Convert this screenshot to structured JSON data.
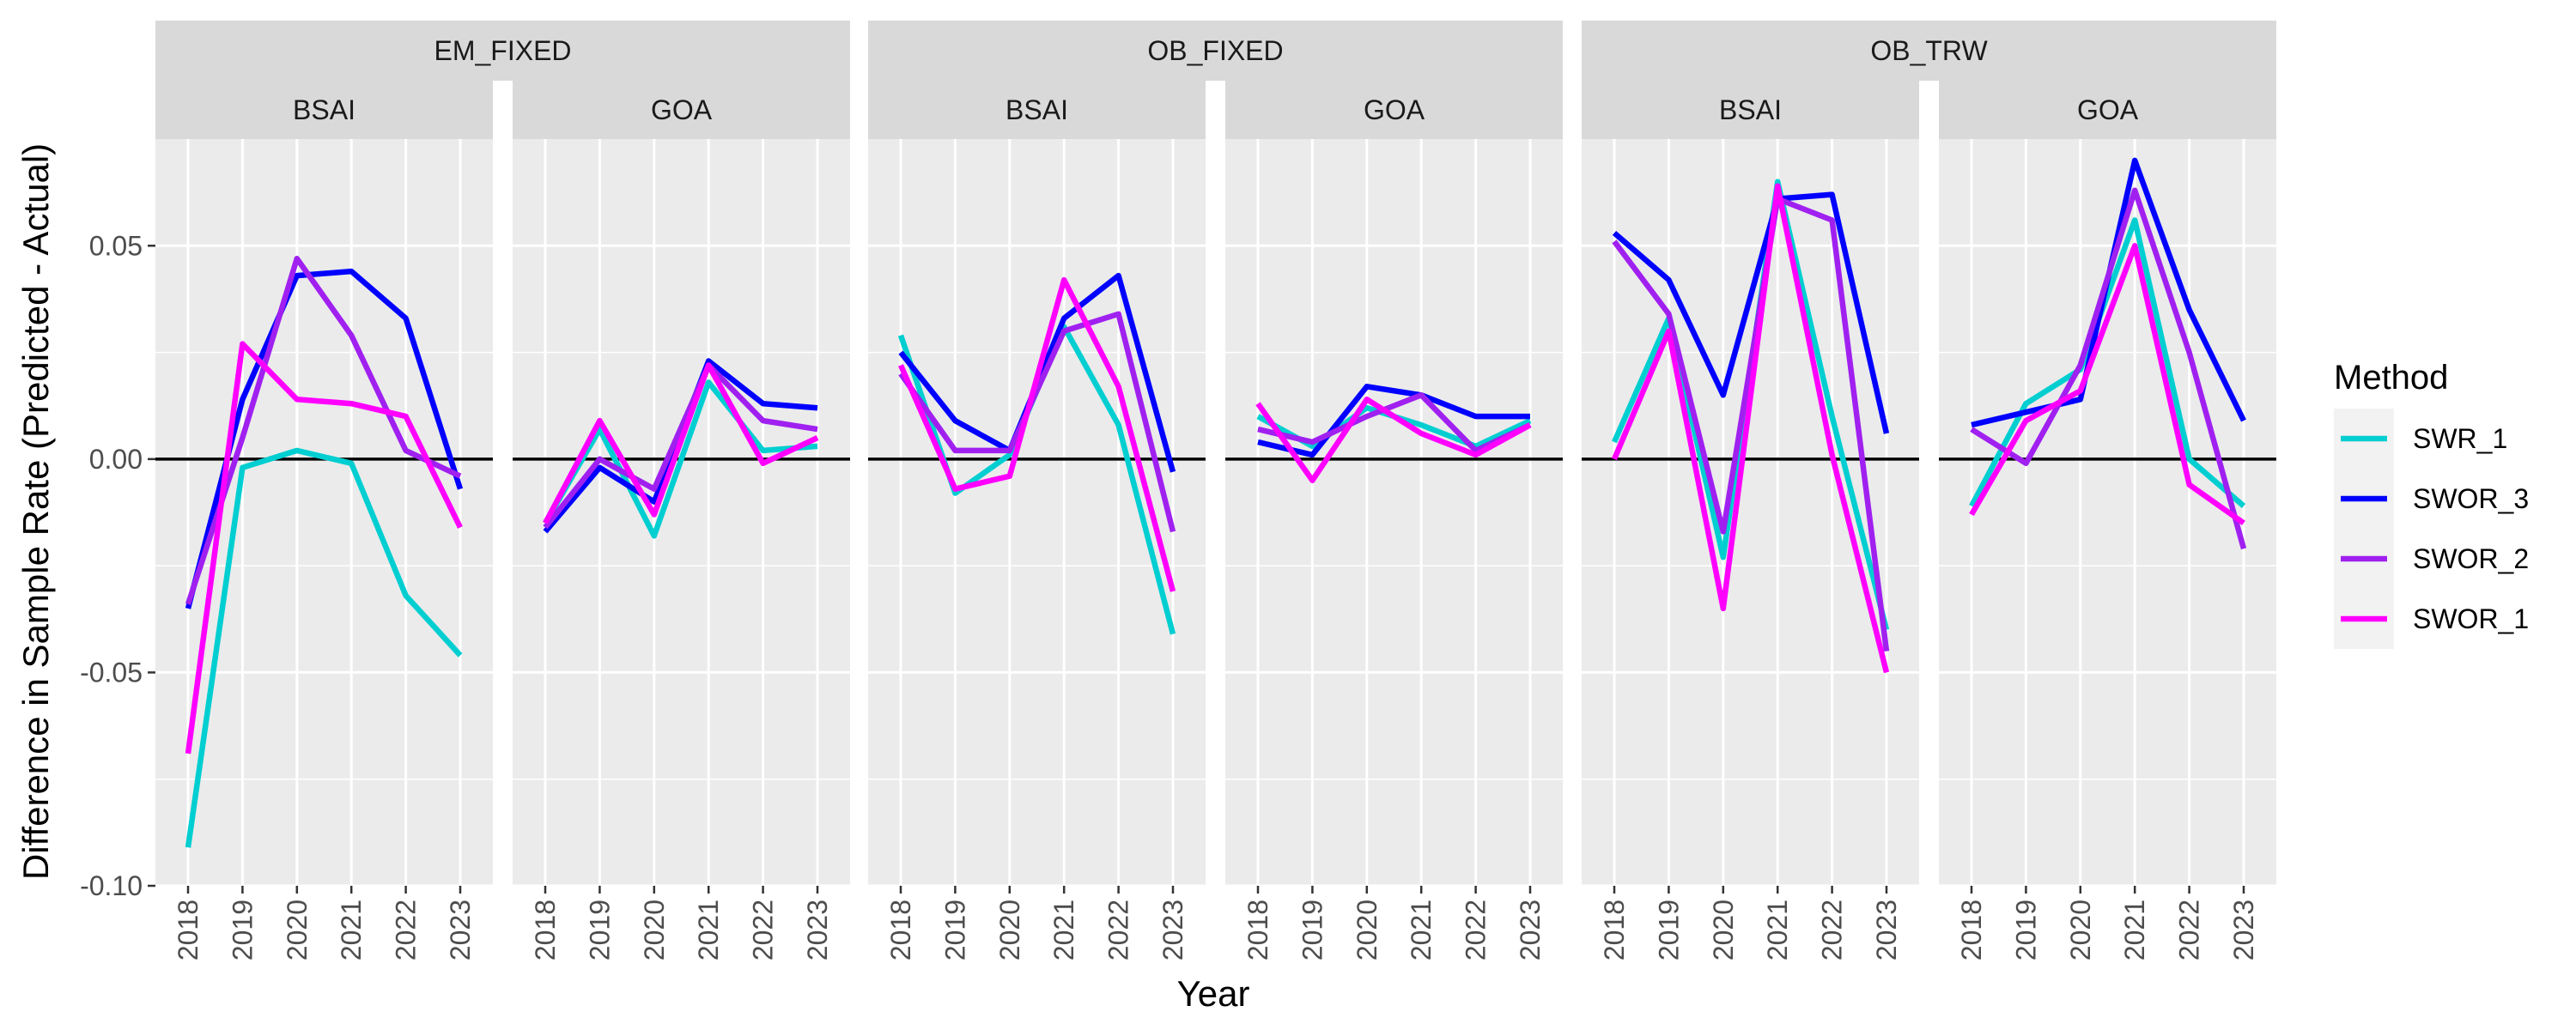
{
  "chart_data": {
    "type": "line",
    "xlabel": "Year",
    "ylabel": "Difference in Sample Rate (Predicted - Actual)",
    "x": [
      "2018",
      "2019",
      "2020",
      "2021",
      "2022",
      "2023"
    ],
    "ylim": [
      -0.1,
      0.075
    ],
    "y_ticks": [
      -0.1,
      -0.05,
      0.0,
      0.05
    ],
    "y_tick_labels": [
      "-0.10",
      "-0.05",
      "0.00",
      "0.05"
    ],
    "reference_line": 0,
    "grid": true,
    "legend": {
      "title": "Method",
      "placement": "right"
    },
    "colors": {
      "SWR_1": "#00CED1",
      "SWOR_3": "#0000FF",
      "SWOR_2": "#A020F0",
      "SWOR_1": "#FF00FF"
    },
    "groups": [
      {
        "label": "EM_FIXED",
        "panels": [
          0,
          1
        ]
      },
      {
        "label": "OB_FIXED",
        "panels": [
          2,
          3
        ]
      },
      {
        "label": "OB_TRW",
        "panels": [
          4,
          5
        ]
      }
    ],
    "panels": [
      {
        "group": "EM_FIXED",
        "label": "BSAI",
        "series": [
          {
            "name": "SWR_1",
            "values": [
              -0.091,
              -0.002,
              0.002,
              -0.001,
              -0.032,
              -0.046
            ]
          },
          {
            "name": "SWOR_3",
            "values": [
              -0.035,
              0.014,
              0.043,
              0.044,
              0.033,
              -0.007
            ]
          },
          {
            "name": "SWOR_2",
            "values": [
              -0.034,
              0.005,
              0.047,
              0.029,
              0.002,
              -0.004
            ]
          },
          {
            "name": "SWOR_1",
            "values": [
              -0.069,
              0.027,
              0.014,
              0.013,
              0.01,
              -0.016
            ]
          }
        ]
      },
      {
        "group": "EM_FIXED",
        "label": "GOA",
        "series": [
          {
            "name": "SWR_1",
            "values": [
              -0.015,
              0.007,
              -0.018,
              0.018,
              0.002,
              0.003
            ]
          },
          {
            "name": "SWOR_3",
            "values": [
              -0.017,
              -0.002,
              -0.01,
              0.023,
              0.013,
              0.012
            ]
          },
          {
            "name": "SWOR_2",
            "values": [
              -0.016,
              0.0,
              -0.007,
              0.022,
              0.009,
              0.007
            ]
          },
          {
            "name": "SWOR_1",
            "values": [
              -0.015,
              0.009,
              -0.013,
              0.022,
              -0.001,
              0.005
            ]
          }
        ]
      },
      {
        "group": "OB_FIXED",
        "label": "BSAI",
        "series": [
          {
            "name": "SWR_1",
            "values": [
              0.029,
              -0.008,
              0.001,
              0.031,
              0.008,
              -0.041
            ]
          },
          {
            "name": "SWOR_3",
            "values": [
              0.025,
              0.009,
              0.002,
              0.033,
              0.043,
              -0.003
            ]
          },
          {
            "name": "SWOR_2",
            "values": [
              0.02,
              0.002,
              0.002,
              0.03,
              0.034,
              -0.017
            ]
          },
          {
            "name": "SWOR_1",
            "values": [
              0.022,
              -0.007,
              -0.004,
              0.042,
              0.017,
              -0.031
            ]
          }
        ]
      },
      {
        "group": "OB_FIXED",
        "label": "GOA",
        "series": [
          {
            "name": "SWR_1",
            "values": [
              0.01,
              0.003,
              0.012,
              0.008,
              0.003,
              0.009
            ]
          },
          {
            "name": "SWOR_3",
            "values": [
              0.004,
              0.001,
              0.017,
              0.015,
              0.01,
              0.01
            ]
          },
          {
            "name": "SWOR_2",
            "values": [
              0.007,
              0.004,
              0.01,
              0.015,
              0.002,
              0.008
            ]
          },
          {
            "name": "SWOR_1",
            "values": [
              0.013,
              -0.005,
              0.014,
              0.006,
              0.001,
              0.008
            ]
          }
        ]
      },
      {
        "group": "OB_TRW",
        "label": "BSAI",
        "series": [
          {
            "name": "SWR_1",
            "values": [
              0.004,
              0.033,
              -0.023,
              0.065,
              0.01,
              -0.04
            ]
          },
          {
            "name": "SWOR_3",
            "values": [
              0.053,
              0.042,
              0.015,
              0.061,
              0.062,
              0.006
            ]
          },
          {
            "name": "SWOR_2",
            "values": [
              0.051,
              0.034,
              -0.017,
              0.061,
              0.056,
              -0.045
            ]
          },
          {
            "name": "SWOR_1",
            "values": [
              0.0,
              0.03,
              -0.035,
              0.064,
              0.001,
              -0.05
            ]
          }
        ]
      },
      {
        "group": "OB_TRW",
        "label": "GOA",
        "series": [
          {
            "name": "SWR_1",
            "values": [
              -0.011,
              0.013,
              0.021,
              0.056,
              0.0,
              -0.011
            ]
          },
          {
            "name": "SWOR_3",
            "values": [
              0.008,
              0.011,
              0.014,
              0.07,
              0.035,
              0.009
            ]
          },
          {
            "name": "SWOR_2",
            "values": [
              0.007,
              -0.001,
              0.022,
              0.063,
              0.025,
              -0.021
            ]
          },
          {
            "name": "SWOR_1",
            "values": [
              -0.013,
              0.009,
              0.016,
              0.05,
              -0.006,
              -0.015
            ]
          }
        ]
      }
    ]
  }
}
